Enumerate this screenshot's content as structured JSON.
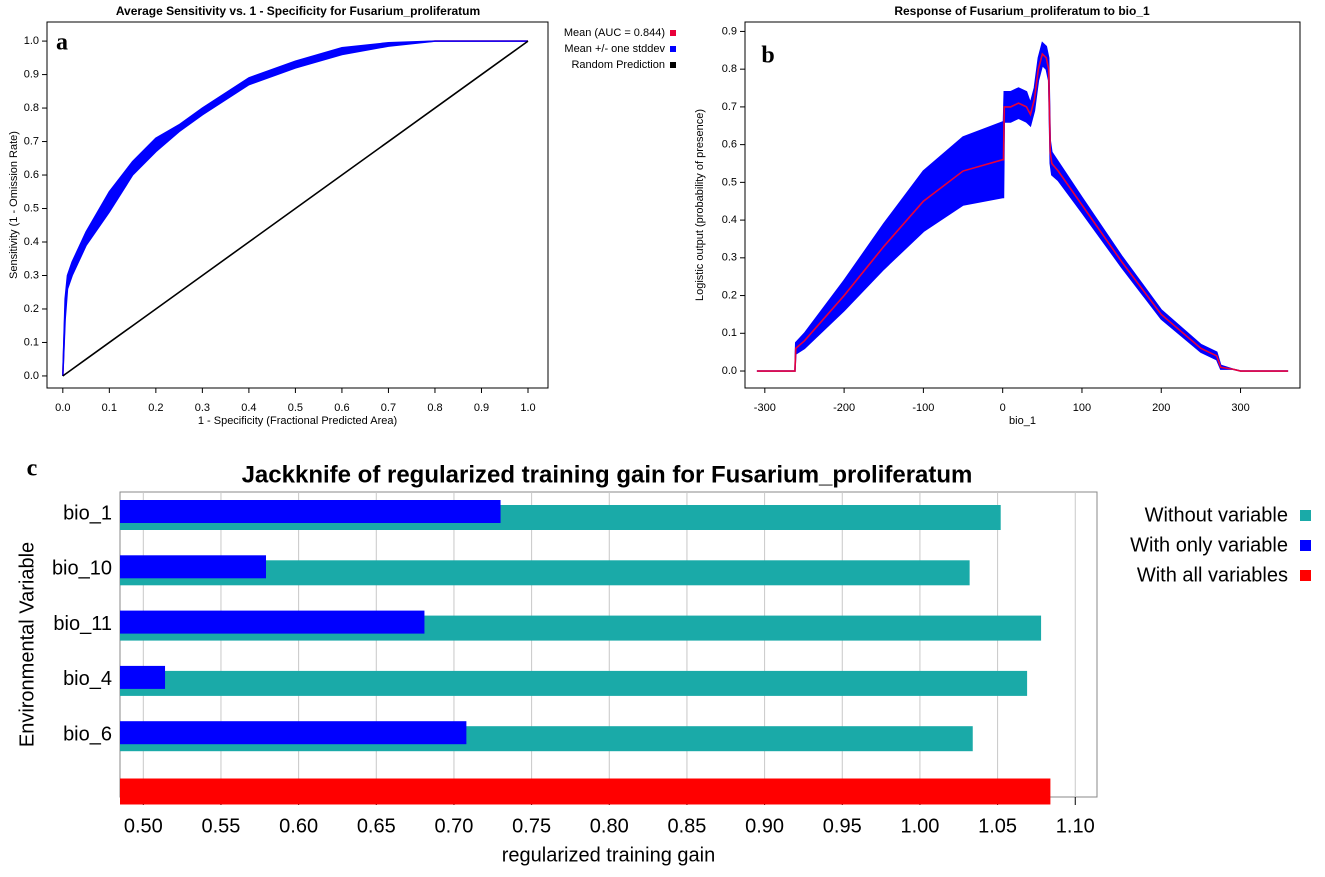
{
  "chart_data": [
    {
      "type": "line",
      "panel_label": "a",
      "title": "Average Sensitivity vs. 1 - Specificity for Fusarium_proliferatum",
      "xlabel": "1 - Specificity (Fractional Predicted Area)",
      "ylabel": "Sensitivity (1 - Omission Rate)",
      "x": [
        0,
        0.005,
        0.01,
        0.02,
        0.05,
        0.1,
        0.15,
        0.2,
        0.25,
        0.3,
        0.4,
        0.5,
        0.6,
        0.7,
        0.8,
        0.9,
        1.0
      ],
      "series": [
        {
          "name": "Mean (AUC = 0.844)",
          "color": "#e8003a",
          "values": [
            0,
            0.2,
            0.28,
            0.32,
            0.41,
            0.52,
            0.62,
            0.69,
            0.74,
            0.79,
            0.88,
            0.93,
            0.97,
            0.99,
            1,
            1,
            1
          ]
        },
        {
          "name": "Mean +/- one stddev",
          "color": "#0000ff",
          "lower": [
            0,
            0.17,
            0.26,
            0.3,
            0.39,
            0.49,
            0.6,
            0.67,
            0.73,
            0.78,
            0.87,
            0.92,
            0.96,
            0.985,
            1,
            1,
            1
          ],
          "upper": [
            0,
            0.23,
            0.3,
            0.34,
            0.43,
            0.55,
            0.64,
            0.71,
            0.75,
            0.8,
            0.89,
            0.94,
            0.98,
            0.995,
            1,
            1,
            1
          ]
        },
        {
          "name": "Random Prediction",
          "color": "#000000",
          "values": [
            0,
            0.005,
            0.01,
            0.02,
            0.05,
            0.1,
            0.15,
            0.2,
            0.25,
            0.3,
            0.4,
            0.5,
            0.6,
            0.7,
            0.8,
            0.9,
            1.0
          ]
        }
      ],
      "xlim": [
        -0.034,
        1.043
      ],
      "ylim": [
        -0.036,
        1.057
      ],
      "xticks": [
        {
          "value": 0,
          "label": "0.0"
        },
        {
          "value": 0.1,
          "label": "0.1"
        },
        {
          "value": 0.2,
          "label": "0.2"
        },
        {
          "value": 0.3,
          "label": "0.3"
        },
        {
          "value": 0.4,
          "label": "0.4"
        },
        {
          "value": 0.5,
          "label": "0.5"
        },
        {
          "value": 0.6,
          "label": "0.6"
        },
        {
          "value": 0.7,
          "label": "0.7"
        },
        {
          "value": 0.8,
          "label": "0.8"
        },
        {
          "value": 0.9,
          "label": "0.9"
        },
        {
          "value": 1,
          "label": "1.0"
        }
      ],
      "yticks": [
        {
          "value": 0,
          "label": "0.0"
        },
        {
          "value": 0.1,
          "label": "0.1"
        },
        {
          "value": 0.2,
          "label": "0.2"
        },
        {
          "value": 0.3,
          "label": "0.3"
        },
        {
          "value": 0.4,
          "label": "0.4"
        },
        {
          "value": 0.5,
          "label": "0.5"
        },
        {
          "value": 0.6,
          "label": "0.6"
        },
        {
          "value": 0.7,
          "label": "0.7"
        },
        {
          "value": 0.8,
          "label": "0.8"
        },
        {
          "value": 0.9,
          "label": "0.9"
        },
        {
          "value": 1,
          "label": "1.0"
        }
      ],
      "grid": false,
      "legend": "outside-right"
    },
    {
      "type": "line",
      "panel_label": "b",
      "title": "Response of Fusarium_proliferatum to bio_1",
      "xlabel": "bio_1",
      "ylabel": "Logistic output (probability of presence)",
      "x": [
        -310,
        -262,
        -261,
        -250,
        -200,
        -150,
        -100,
        -50,
        0,
        1,
        2,
        10,
        20,
        30,
        35,
        40,
        45,
        50,
        55,
        58,
        60,
        62,
        70,
        100,
        150,
        200,
        250,
        270,
        275,
        290,
        300,
        360
      ],
      "series": [
        {
          "color": "#0000ff",
          "lower": [
            0,
            0,
            0.045,
            0.06,
            0.16,
            0.27,
            0.37,
            0.44,
            0.46,
            0.46,
            0.66,
            0.66,
            0.67,
            0.66,
            0.65,
            0.69,
            0.77,
            0.81,
            0.8,
            0.77,
            0.55,
            0.52,
            0.505,
            0.42,
            0.275,
            0.138,
            0.05,
            0.03,
            0.005,
            0.005,
            0,
            0
          ],
          "upper": [
            0,
            0,
            0.075,
            0.1,
            0.24,
            0.39,
            0.53,
            0.62,
            0.66,
            0.66,
            0.74,
            0.74,
            0.75,
            0.74,
            0.71,
            0.75,
            0.83,
            0.87,
            0.86,
            0.83,
            0.61,
            0.58,
            0.555,
            0.46,
            0.305,
            0.162,
            0.07,
            0.05,
            0.015,
            0.005,
            0,
            0
          ]
        },
        {
          "color": "#e8003a",
          "values": [
            0,
            0,
            0.06,
            0.08,
            0.2,
            0.33,
            0.45,
            0.53,
            0.56,
            0.56,
            0.7,
            0.7,
            0.71,
            0.7,
            0.68,
            0.72,
            0.8,
            0.84,
            0.83,
            0.8,
            0.58,
            0.55,
            0.53,
            0.44,
            0.29,
            0.15,
            0.06,
            0.04,
            0.01,
            0.005,
            0,
            0
          ]
        }
      ],
      "xlim": [
        -325,
        375
      ],
      "ylim": [
        -0.045,
        0.925
      ],
      "xticks": [
        -300,
        -200,
        -100,
        0,
        100,
        200,
        300
      ],
      "yticks": [
        {
          "value": 0,
          "label": "0.0"
        },
        {
          "value": 0.1,
          "label": "0.1"
        },
        {
          "value": 0.2,
          "label": "0.2"
        },
        {
          "value": 0.3,
          "label": "0.3"
        },
        {
          "value": 0.4,
          "label": "0.4"
        },
        {
          "value": 0.5,
          "label": "0.5"
        },
        {
          "value": 0.6,
          "label": "0.6"
        },
        {
          "value": 0.7,
          "label": "0.7"
        },
        {
          "value": 0.8,
          "label": "0.8"
        },
        {
          "value": 0.9,
          "label": "0.9"
        }
      ],
      "grid": false
    },
    {
      "type": "bar",
      "orientation": "horizontal",
      "panel_label": "c",
      "title": "Jackknife of regularized training gain for Fusarium_proliferatum",
      "xlabel": "regularized training gain",
      "ylabel": "Environmental Variable",
      "categories": [
        "bio_1",
        "bio_10",
        "bio_11",
        "bio_4",
        "bio_6",
        null
      ],
      "series": [
        {
          "name": "Without variable",
          "color": "#1aaaa8",
          "values": [
            1.052,
            1.032,
            1.078,
            1.069,
            1.034,
            null
          ]
        },
        {
          "name": "With only variable",
          "color": "#0000ff",
          "values": [
            0.73,
            0.579,
            0.681,
            0.514,
            0.708,
            null
          ]
        },
        {
          "name": "With all variables",
          "color": "#ff0000",
          "values": [
            null,
            null,
            null,
            null,
            null,
            1.084
          ]
        }
      ],
      "xlim": [
        0.485,
        1.114
      ],
      "xticks": [
        {
          "value": 0.5,
          "label": "0.50"
        },
        {
          "value": 0.55,
          "label": "0.55"
        },
        {
          "value": 0.6,
          "label": "0.60"
        },
        {
          "value": 0.65,
          "label": "0.65"
        },
        {
          "value": 0.7,
          "label": "0.70"
        },
        {
          "value": 0.75,
          "label": "0.75"
        },
        {
          "value": 0.8,
          "label": "0.80"
        },
        {
          "value": 0.85,
          "label": "0.85"
        },
        {
          "value": 0.9,
          "label": "0.90"
        },
        {
          "value": 0.95,
          "label": "0.95"
        },
        {
          "value": 1.0,
          "label": "1.00"
        },
        {
          "value": 1.05,
          "label": "1.05"
        },
        {
          "value": 1.1,
          "label": "1.10"
        }
      ],
      "grid": true,
      "legend": "outside-right"
    }
  ]
}
